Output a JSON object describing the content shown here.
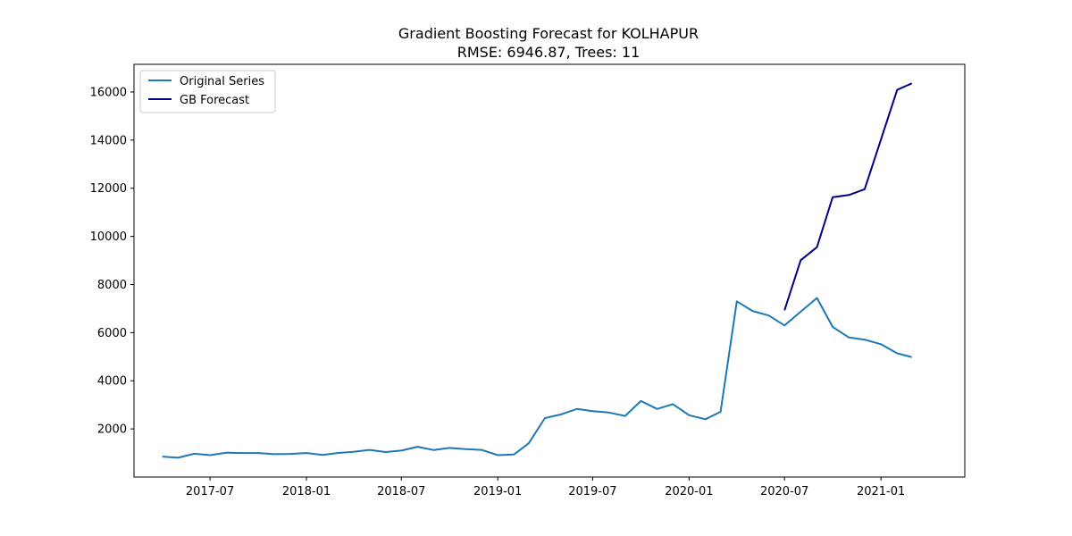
{
  "chart_data": {
    "type": "line",
    "title": "Gradient Boosting Forecast for KOLHAPUR",
    "subtitle": "RMSE: 6946.87, Trees: 11",
    "xlabel": "",
    "ylabel": "",
    "xlim": [
      "2017-02-06",
      "2021-06-10"
    ],
    "ylim": [
      0,
      17150
    ],
    "x_ticks": [
      "2017-07",
      "2018-01",
      "2018-07",
      "2019-01",
      "2019-07",
      "2020-01",
      "2020-07",
      "2021-01"
    ],
    "y_ticks": [
      2000,
      4000,
      6000,
      8000,
      10000,
      12000,
      14000,
      16000
    ],
    "grid": false,
    "legend_position": "upper left",
    "series": [
      {
        "name": "Original Series",
        "color": "#1f77b4",
        "x": [
          "2017-04",
          "2017-05",
          "2017-06",
          "2017-07",
          "2017-08",
          "2017-09",
          "2017-10",
          "2017-11",
          "2017-12",
          "2018-01",
          "2018-02",
          "2018-03",
          "2018-04",
          "2018-05",
          "2018-06",
          "2018-07",
          "2018-08",
          "2018-09",
          "2018-10",
          "2018-11",
          "2018-12",
          "2019-01",
          "2019-02",
          "2019-03",
          "2019-04",
          "2019-05",
          "2019-06",
          "2019-07",
          "2019-08",
          "2019-09",
          "2019-10",
          "2019-11",
          "2019-12",
          "2020-01",
          "2020-02",
          "2020-03",
          "2020-04",
          "2020-05",
          "2020-06",
          "2020-07",
          "2020-08",
          "2020-09",
          "2020-10",
          "2020-11",
          "2020-12",
          "2021-01",
          "2021-02",
          "2021-03"
        ],
        "values": [
          850,
          800,
          970,
          910,
          1010,
          1000,
          1000,
          950,
          960,
          1000,
          920,
          1000,
          1050,
          1130,
          1040,
          1100,
          1260,
          1120,
          1210,
          1160,
          1130,
          910,
          940,
          1400,
          2450,
          2600,
          2830,
          2740,
          2680,
          2540,
          3160,
          2830,
          3030,
          2570,
          2400,
          2710,
          7300,
          6900,
          6710,
          6300,
          6870,
          7440,
          6240,
          5800,
          5710,
          5520,
          5140,
          4980
        ]
      },
      {
        "name": "GB Forecast",
        "color": "#000080",
        "x": [
          "2020-07",
          "2020-08",
          "2020-09",
          "2020-10",
          "2020-11",
          "2020-12",
          "2021-01",
          "2021-02",
          "2021-03"
        ],
        "values": [
          6930,
          9010,
          9550,
          11630,
          11720,
          11960,
          14020,
          16090,
          16360
        ]
      }
    ]
  }
}
